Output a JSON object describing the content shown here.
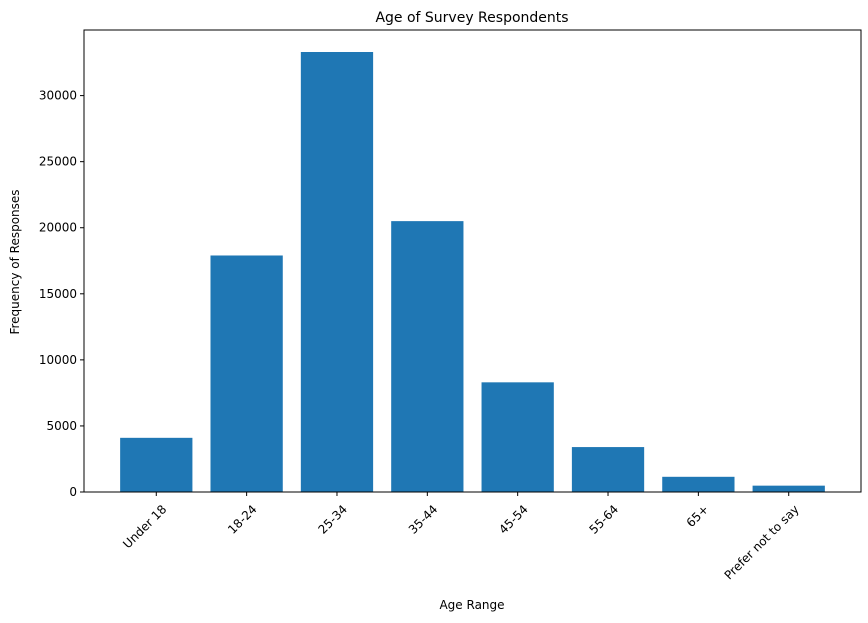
{
  "chart_data": {
    "type": "bar",
    "title": "Age of Survey Respondents",
    "xlabel": "Age Range",
    "ylabel": "Frequency of Responses",
    "categories": [
      "Under 18",
      "18-24",
      "25-34",
      "35-44",
      "45-54",
      "55-64",
      "65+",
      "Prefer not to say"
    ],
    "values": [
      4100,
      17900,
      33300,
      20500,
      8300,
      3400,
      1150,
      480
    ],
    "ylim": [
      0,
      34965
    ],
    "yticks": [
      0,
      5000,
      10000,
      15000,
      20000,
      25000,
      30000
    ],
    "grid": false,
    "legend": "none",
    "bar_color": "#1f77b4"
  }
}
